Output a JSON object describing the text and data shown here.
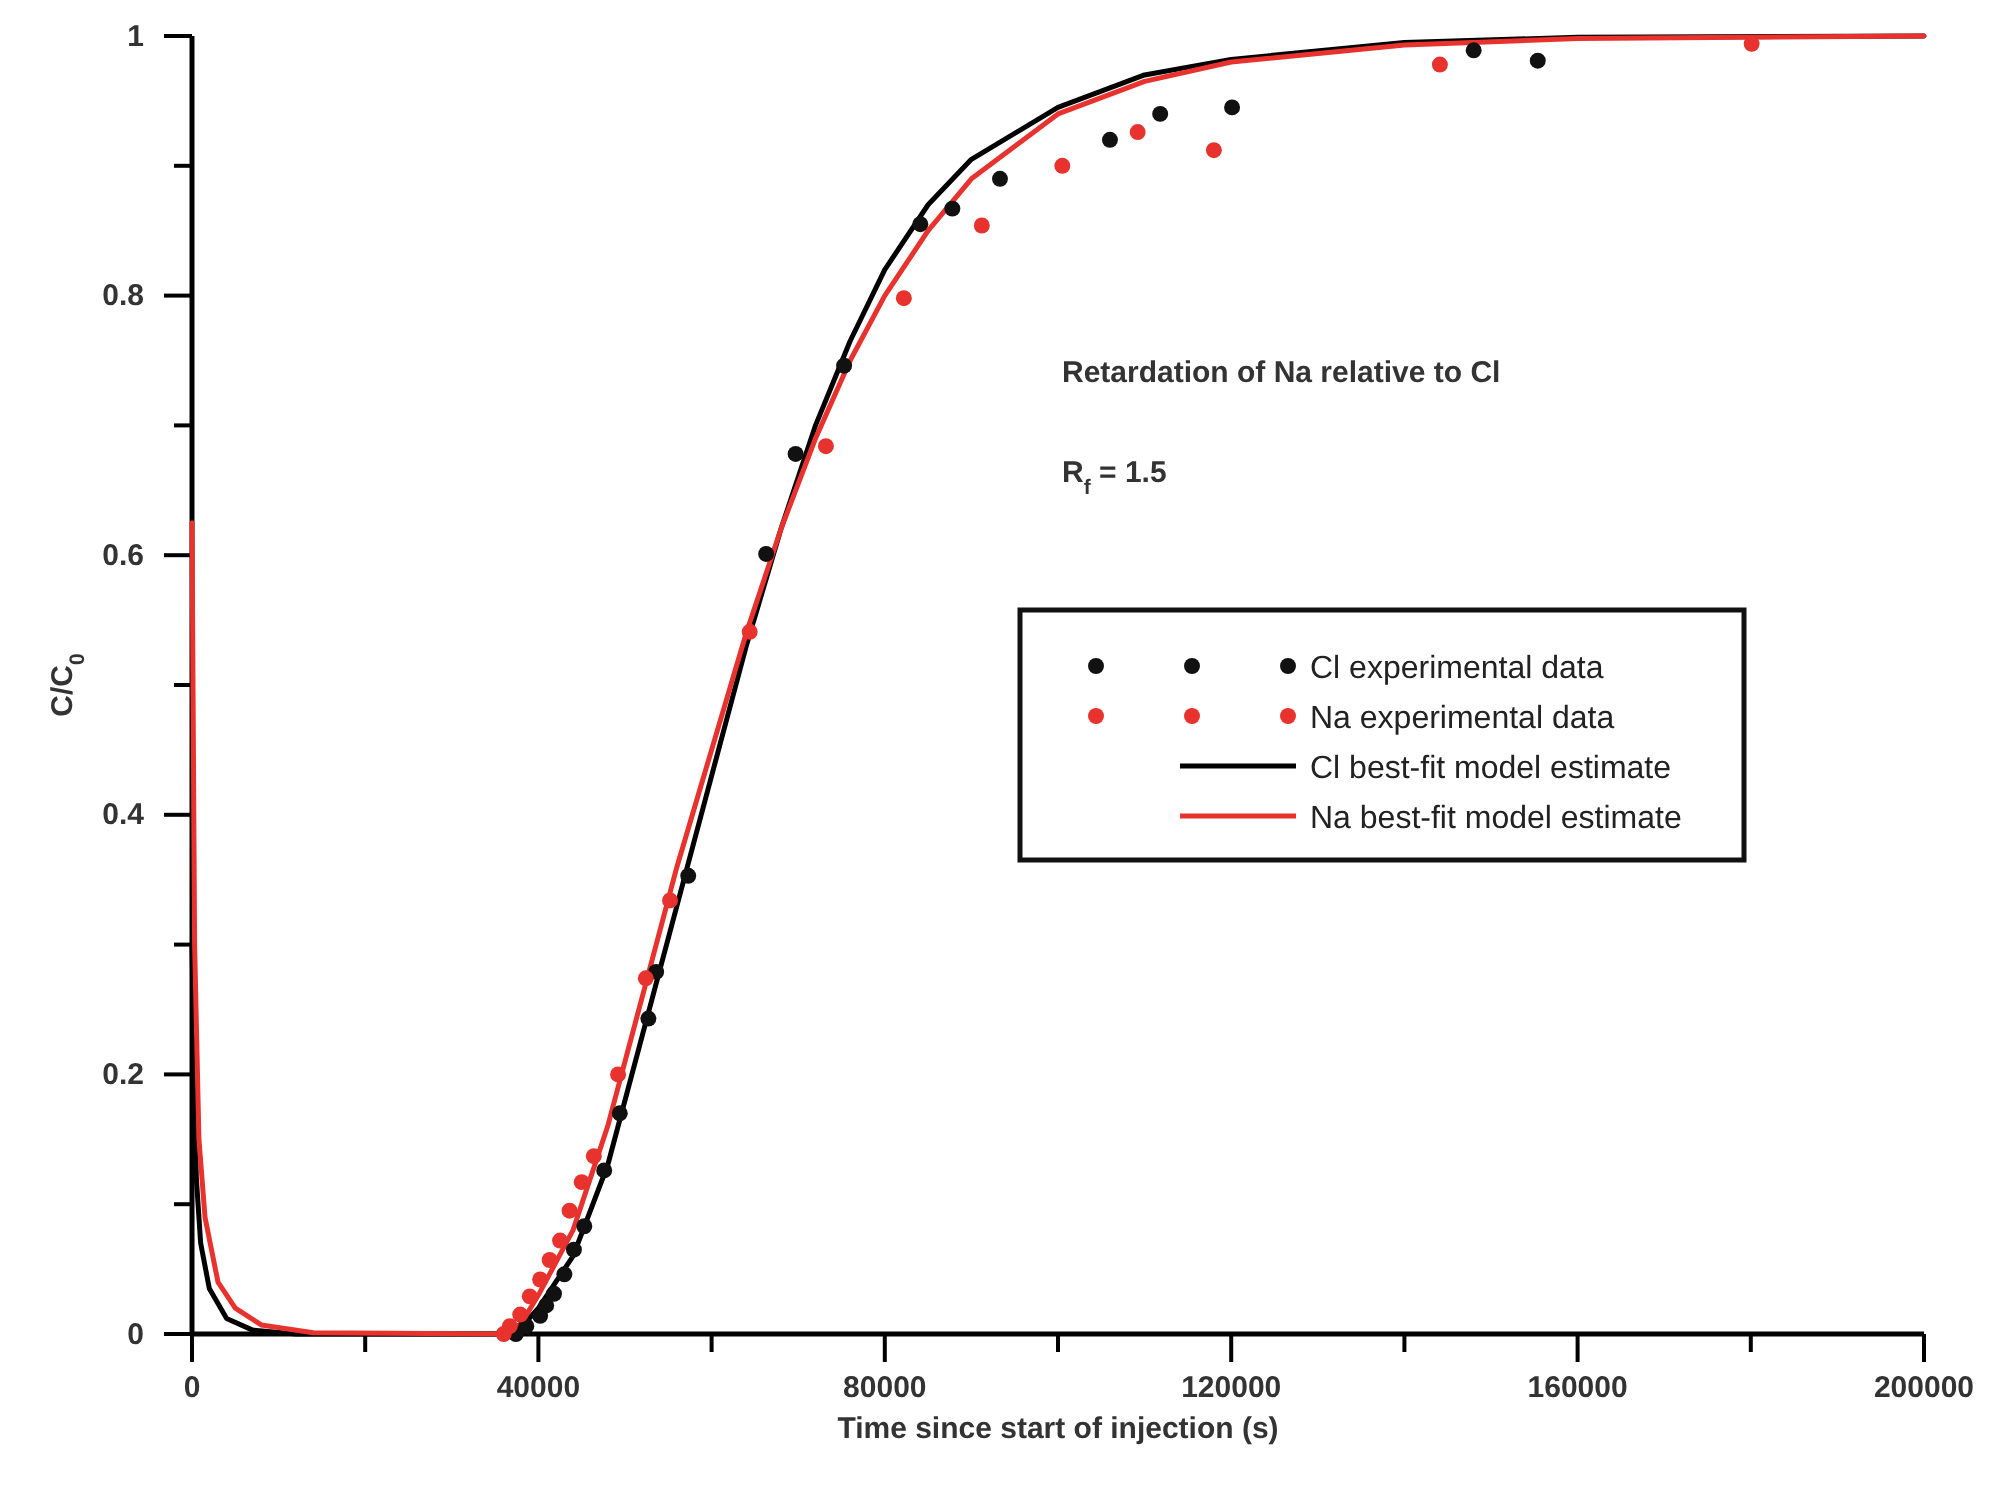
{
  "chart_data": {
    "type": "line",
    "xlabel": "Time since start of injection (s)",
    "ylabel": "C/C$_{0}$",
    "annotations": [
      "Retardation of Na relative to Cl",
      "R$_{f}$ = 1.5"
    ],
    "xlim": [
      0,
      200000
    ],
    "ylim": [
      0,
      1
    ],
    "xticks": [
      0,
      {
        "value": 20000,
        "label": null
      },
      40000,
      {
        "value": 60000,
        "label": null
      },
      80000,
      {
        "value": 100000,
        "label": null
      },
      120000,
      {
        "value": 140000,
        "label": null
      },
      160000,
      {
        "value": 180000,
        "label": null
      },
      200000
    ],
    "yticks": [
      0,
      {
        "value": 0.1,
        "label": null
      },
      0.2,
      {
        "value": 0.3,
        "label": null
      },
      0.4,
      {
        "value": 0.5,
        "label": null
      },
      0.6,
      {
        "value": 0.7,
        "label": null
      },
      0.8,
      {
        "value": 0.9,
        "label": null
      },
      1
    ],
    "grid": false,
    "legend": "right",
    "series": [
      {
        "name": "Cl best-fit model estimate",
        "color": "#000000",
        "line_style": "solid",
        "marker": "none",
        "x": [
          0,
          500,
          1000,
          2000,
          4000,
          7000,
          12000,
          36000,
          38000,
          40000,
          44000,
          48000,
          52000,
          56000,
          60000,
          64000,
          68000,
          72000,
          76000,
          80000,
          85000,
          90000,
          100000,
          110000,
          120000,
          140000,
          160000,
          200000
        ],
        "values": [
          0.3,
          0.12,
          0.07,
          0.035,
          0.012,
          0.003,
          0,
          0,
          0.005,
          0.02,
          0.06,
          0.13,
          0.23,
          0.33,
          0.43,
          0.53,
          0.62,
          0.7,
          0.765,
          0.82,
          0.87,
          0.905,
          0.945,
          0.97,
          0.982,
          0.995,
          0.999,
          1
        ]
      },
      {
        "name": "Na best-fit model estimate",
        "color": "#e8322e",
        "line_style": "solid",
        "marker": "none",
        "x": [
          0,
          300,
          800,
          1500,
          3000,
          5000,
          8000,
          14000,
          36000,
          38000,
          40000,
          44000,
          48000,
          52000,
          56000,
          60000,
          64000,
          68000,
          72000,
          76000,
          80000,
          85000,
          90000,
          100000,
          110000,
          120000,
          140000,
          160000,
          200000
        ],
        "values": [
          0.625,
          0.3,
          0.15,
          0.09,
          0.04,
          0.02,
          0.007,
          0.001,
          0,
          0.008,
          0.03,
          0.08,
          0.16,
          0.26,
          0.36,
          0.45,
          0.54,
          0.62,
          0.69,
          0.75,
          0.8,
          0.85,
          0.89,
          0.94,
          0.965,
          0.98,
          0.993,
          0.998,
          1
        ]
      },
      {
        "name": "Cl experimental data",
        "type": "scatter",
        "color": "#111111",
        "marker": "circle",
        "x": [
          37400,
          38600,
          40200,
          40900,
          41800,
          43000,
          44100,
          45300,
          47600,
          49400,
          52700,
          53600,
          57300,
          66300,
          69700,
          75300,
          84100,
          87800,
          93300,
          106000,
          111800,
          120100,
          148000,
          155400
        ],
        "values": [
          0,
          0.006,
          0.014,
          0.022,
          0.031,
          0.046,
          0.065,
          0.083,
          0.126,
          0.17,
          0.243,
          0.279,
          0.353,
          0.601,
          0.678,
          0.746,
          0.855,
          0.867,
          0.89,
          0.92,
          0.94,
          0.945,
          0.989,
          0.981
        ]
      },
      {
        "name": "Na experimental data",
        "type": "scatter",
        "color": "#e8322e",
        "marker": "circle",
        "x": [
          36000,
          36700,
          37900,
          39000,
          40200,
          41300,
          42500,
          43600,
          45000,
          46400,
          49200,
          52400,
          55200,
          64400,
          73200,
          82200,
          91200,
          100500,
          109200,
          118000,
          144100,
          180100
        ],
        "values": [
          0,
          0.006,
          0.015,
          0.029,
          0.042,
          0.057,
          0.072,
          0.095,
          0.117,
          0.137,
          0.2,
          0.274,
          0.334,
          0.541,
          0.684,
          0.798,
          0.854,
          0.9,
          0.926,
          0.912,
          0.978,
          0.994
        ]
      }
    ]
  }
}
